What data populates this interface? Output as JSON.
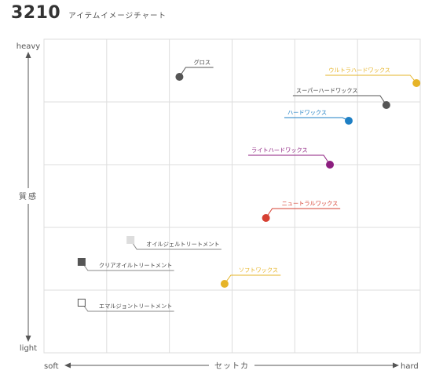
{
  "header": {
    "number": "3210",
    "subtitle": "アイテムイメージチャート"
  },
  "axes": {
    "y_top": "heavy",
    "y_bottom": "light",
    "y_label": "質感",
    "x_left": "soft",
    "x_right": "hard",
    "x_label": "セットカ"
  },
  "chart_data": {
    "type": "scatter",
    "title": "アイテムイメージチャート",
    "xlabel": "セットカ",
    "ylabel": "質感",
    "x_range_labels": [
      "soft",
      "hard"
    ],
    "y_range_labels": [
      "light",
      "heavy"
    ],
    "xlim": [
      0,
      10
    ],
    "ylim": [
      0,
      10
    ],
    "grid": true,
    "points": [
      {
        "label": "グロス",
        "x": 3.6,
        "y": 8.8,
        "color": "#555555",
        "marker": "circle"
      },
      {
        "label": "ウルトラハードワックス",
        "x": 9.9,
        "y": 8.6,
        "color": "#E6B428",
        "marker": "circle"
      },
      {
        "label": "スーパーハードワックス",
        "x": 9.1,
        "y": 7.9,
        "color": "#555555",
        "marker": "circle"
      },
      {
        "label": "ハードワックス",
        "x": 8.1,
        "y": 7.4,
        "color": "#1E7FC4",
        "marker": "circle"
      },
      {
        "label": "ライトハードワックス",
        "x": 7.6,
        "y": 6.0,
        "color": "#8C1E7F",
        "marker": "circle"
      },
      {
        "label": "ニュートラルワックス",
        "x": 5.9,
        "y": 4.3,
        "color": "#D64032",
        "marker": "circle"
      },
      {
        "label": "オイルジェルトリートメント",
        "x": 2.3,
        "y": 3.6,
        "color": "#DDDDDD",
        "marker": "square"
      },
      {
        "label": "クリアオイルトリートメント",
        "x": 1.0,
        "y": 2.9,
        "color": "#555555",
        "marker": "square"
      },
      {
        "label": "ソフトワックス",
        "x": 4.8,
        "y": 2.2,
        "color": "#E6B428",
        "marker": "circle"
      },
      {
        "label": "エマルジョントリートメント",
        "x": 1.0,
        "y": 1.6,
        "color": "#FFFFFF",
        "marker": "square-outline"
      }
    ]
  }
}
